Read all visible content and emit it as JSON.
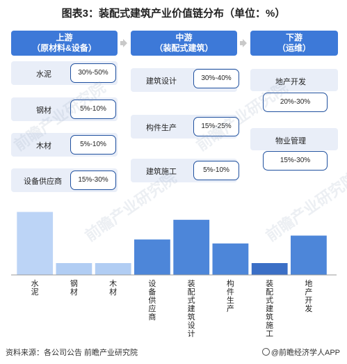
{
  "title": "图表3：装配式建筑产业价值链分布（单位：%）",
  "colors": {
    "header": "#3d79d8",
    "item_bg": "#e9eef8",
    "pct_border": "#1e4f9e",
    "bar_light": "#bcd4f6",
    "bar_mid": "#b1cdf3",
    "bar_blue": "#4d86d9",
    "bar_dark": "#3b6fc6",
    "arrow": "#c9c9c9"
  },
  "stages": [
    {
      "name": "上游",
      "sub": "（原材料&设备）",
      "items": [
        {
          "label": "水泥",
          "range": "30%-50%"
        },
        {
          "label": "钢材",
          "range": "5%-10%"
        },
        {
          "label": "木材",
          "range": "5%-10%"
        },
        {
          "label": "设备供应商",
          "range": "15%-30%"
        }
      ]
    },
    {
      "name": "中游",
      "sub": "（装配式建筑）",
      "items": [
        {
          "label": "建筑设计",
          "range": "30%-40%"
        },
        {
          "label": "构件生产",
          "range": "15%-25%"
        },
        {
          "label": "建筑施工",
          "range": "5%-10%"
        }
      ]
    },
    {
      "name": "下游",
      "sub": "（运维）",
      "items": [
        {
          "label": "地产开发",
          "range": "20%-30%"
        },
        {
          "label": "物业管理",
          "range": "15%-30%"
        }
      ]
    }
  ],
  "chart_data": {
    "type": "bar",
    "title": "",
    "xlabel": "",
    "ylabel": "",
    "categories": [
      "水泥",
      "钢材",
      "木材",
      "设备供应商",
      "装配式建筑设计",
      "构件生产",
      "装配式建筑施工",
      "地产开发"
    ],
    "values": [
      40,
      7.5,
      7.5,
      22.5,
      35,
      20,
      7.5,
      25
    ],
    "bar_colors": [
      "#bcd4f6",
      "#b1cdf3",
      "#b1cdf3",
      "#4d86d9",
      "#4d86d9",
      "#4d86d9",
      "#3b6fc6",
      "#4d86d9"
    ],
    "ylim": [
      0,
      42
    ],
    "grid": false,
    "legend": "none"
  },
  "footer": {
    "source": "资料来源：各公司公告 前瞻产业研究院",
    "brand": "@前瞻经济学人APP"
  },
  "watermark": "前瞻产业研究院"
}
